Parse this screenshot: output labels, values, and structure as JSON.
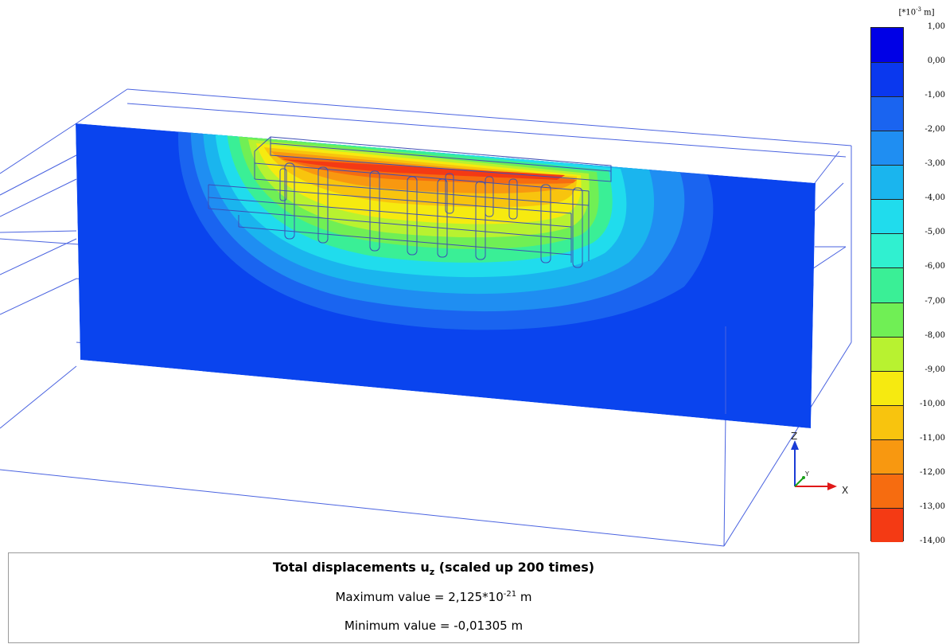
{
  "scale": {
    "unit_prefix": "[*10",
    "unit_exponent": "-3",
    "unit_suffix": " m]",
    "ticks": [
      "1,00",
      "0,00",
      "-1,00",
      "-2,00",
      "-3,00",
      "-4,00",
      "-5,00",
      "-6,00",
      "-7,00",
      "-8,00",
      "-9,00",
      "-10,00",
      "-11,00",
      "-12,00",
      "-13,00",
      "-14,00"
    ],
    "colors": [
      "#0000e6",
      "#0a38ee",
      "#1a64f0",
      "#1f8ef2",
      "#1ab5ee",
      "#20dced",
      "#30f0d0",
      "#3aef96",
      "#70ef55",
      "#b8f230",
      "#f6ea10",
      "#f8c40e",
      "#f89810",
      "#f66c10",
      "#f43a14",
      "#f01414"
    ]
  },
  "axes": {
    "z": "Z",
    "y": "Y",
    "x": "X",
    "colors": {
      "z": "#1a3cd6",
      "y": "#1aa01a",
      "x": "#e01818"
    }
  },
  "info": {
    "title_main": "Total displacements u",
    "title_sub": "z",
    "title_tail": " (scaled up 200 times)",
    "max_prefix": "Maximum value = 2,125*10",
    "max_exp": "-21",
    "max_suffix": " m",
    "min_text": "Minimum value = -0,01305 m"
  }
}
